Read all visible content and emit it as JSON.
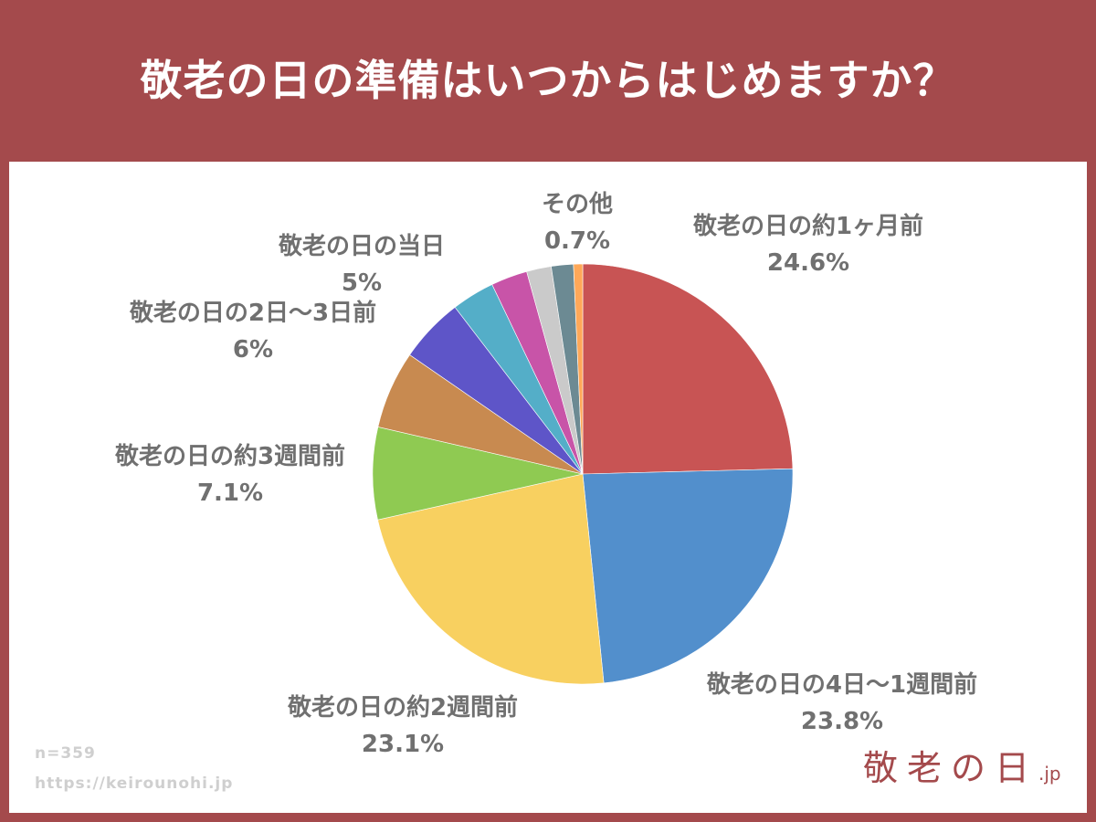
{
  "title": "敬老の日の準備はいつからはじめますか？",
  "colors": {
    "header_bg": "#A44A4C",
    "panel_bg": "#FFFFFF",
    "label_text": "#707070",
    "footnote_text": "#CFCFCF"
  },
  "footnotes": {
    "sample_size": "n=359",
    "url": "https://keirounohi.jp"
  },
  "logo": {
    "text": "敬老の日",
    "tld": ".jp"
  },
  "labels": [
    {
      "name": "敬老の日の約1ヶ月前",
      "value": "24.6%"
    },
    {
      "name": "敬老の日の4日〜1週間前",
      "value": "23.8%"
    },
    {
      "name": "敬老の日の約2週間前",
      "value": "23.1%"
    },
    {
      "name": "敬老の日の約3週間前",
      "value": "7.1%"
    },
    {
      "name": "敬老の日の2日〜3日前",
      "value": "6%"
    },
    {
      "name": "敬老の日の当日",
      "value": "5%"
    },
    {
      "name": "その他",
      "value": "0.7%"
    }
  ],
  "chart_data": {
    "type": "pie",
    "title": "敬老の日の準備はいつからはじめますか？",
    "start_angle": "top (12 o'clock)",
    "direction": "clockwise",
    "n": 359,
    "categories": [
      "敬老の日の約1ヶ月前",
      "敬老の日の4日〜1週間前",
      "敬老の日の約2週間前",
      "敬老の日の約3週間前",
      "敬老の日の2日〜3日前",
      "敬老の日の当日",
      "(unlabeled slice)",
      "(unlabeled slice)",
      "(unlabeled slice)",
      "(unlabeled slice)",
      "その他"
    ],
    "values": [
      24.6,
      23.8,
      23.1,
      7.1,
      6.0,
      5.0,
      3.3,
      2.8,
      1.9,
      1.7,
      0.7
    ],
    "colors": [
      "#C85454",
      "#528FCC",
      "#F8D060",
      "#8FCA52",
      "#C88A50",
      "#5E55C8",
      "#54AEC8",
      "#C854A8",
      "#CACACA",
      "#6C8A93",
      "#FFA858"
    ],
    "labeled": [
      true,
      true,
      true,
      true,
      true,
      true,
      false,
      false,
      false,
      false,
      true
    ],
    "unit": "%",
    "legend": "none (direct labels)"
  }
}
